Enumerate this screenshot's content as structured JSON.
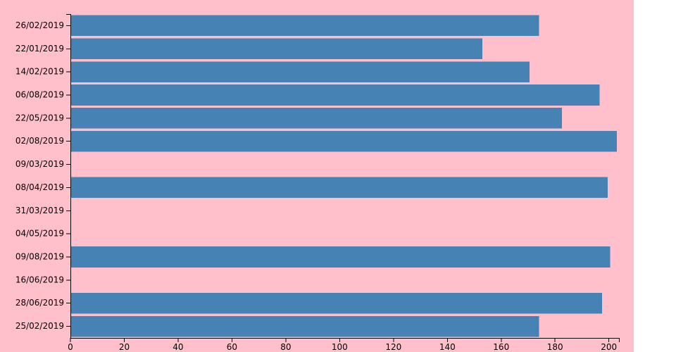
{
  "colors": {
    "background": "#ffc0cb",
    "bar": "#4682b4",
    "axis": "#000000"
  },
  "chart_data": {
    "type": "bar",
    "orientation": "horizontal",
    "title": "",
    "xlabel": "",
    "ylabel": "",
    "categories": [
      "26/02/2019",
      "22/01/2019",
      "14/02/2019",
      "06/08/2019",
      "22/05/2019",
      "02/08/2019",
      "09/03/2019",
      "08/04/2019",
      "31/03/2019",
      "04/05/2019",
      "09/08/2019",
      "16/06/2019",
      "28/06/2019",
      "25/02/2019"
    ],
    "values": [
      174,
      153,
      170.5,
      196.5,
      182.5,
      203,
      null,
      199.5,
      null,
      null,
      200.5,
      null,
      197.5,
      174
    ],
    "xlim": [
      0,
      204
    ],
    "xticks": [
      0,
      20,
      40,
      60,
      80,
      100,
      120,
      140,
      160,
      180,
      200
    ],
    "grid": false,
    "legend": "none"
  }
}
